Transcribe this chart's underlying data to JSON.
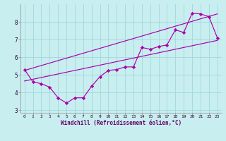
{
  "xlabel": "Windchill (Refroidissement éolien,°C)",
  "bg_color": "#c8eef0",
  "grid_color": "#a0d8dc",
  "line_color": "#aa00aa",
  "spine_color": "#888888",
  "xlim": [
    -0.5,
    23.5
  ],
  "ylim": [
    2.85,
    9.0
  ],
  "yticks": [
    3,
    4,
    5,
    6,
    7,
    8
  ],
  "xticks": [
    0,
    1,
    2,
    3,
    4,
    5,
    6,
    7,
    8,
    9,
    10,
    11,
    12,
    13,
    14,
    15,
    16,
    17,
    18,
    19,
    20,
    21,
    22,
    23
  ],
  "line1_x": [
    0,
    1,
    2,
    3,
    4,
    5,
    6,
    7,
    8,
    9,
    10,
    11,
    12,
    13,
    14,
    15,
    16,
    17,
    18,
    19,
    20,
    21,
    22,
    23
  ],
  "line1_y": [
    5.3,
    4.6,
    4.5,
    4.3,
    3.7,
    3.4,
    3.7,
    3.7,
    4.35,
    4.9,
    5.25,
    5.3,
    5.45,
    5.45,
    6.55,
    6.45,
    6.6,
    6.7,
    7.55,
    7.4,
    8.5,
    8.45,
    8.3,
    7.1
  ],
  "line2_x": [
    0,
    23
  ],
  "line2_y": [
    4.65,
    6.95
  ],
  "line3_x": [
    0,
    23
  ],
  "line3_y": [
    5.25,
    8.45
  ]
}
